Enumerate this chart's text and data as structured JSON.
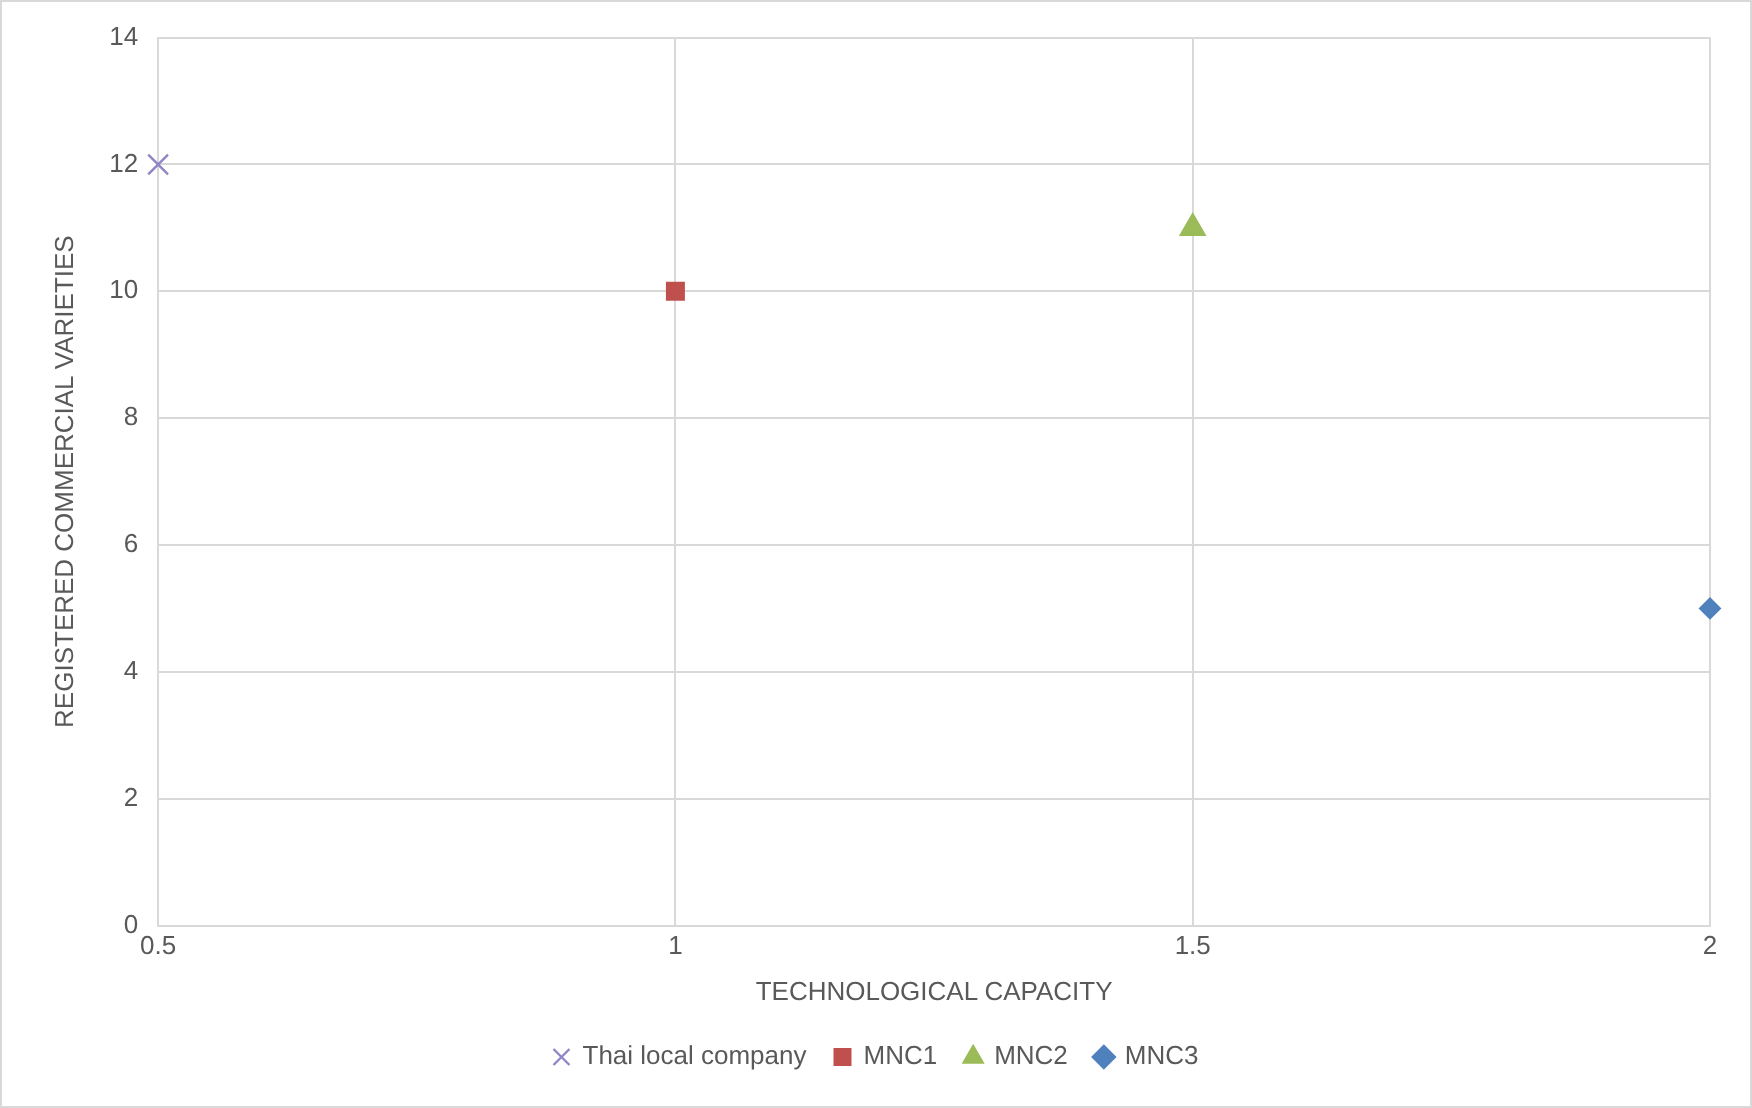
{
  "chart_data": {
    "type": "scatter",
    "xlabel": "TECHNOLOGICAL CAPACITY",
    "ylabel": "REGISTERED COMMERCIAL VARIETIES",
    "xlim": [
      0.5,
      2
    ],
    "xticks": [
      {
        "value": 0.5,
        "label": "0.5"
      },
      1,
      1.5,
      2
    ],
    "ylim": [
      0,
      14
    ],
    "yticks": [
      0,
      2,
      4,
      6,
      8,
      10,
      12,
      14
    ],
    "grid": true,
    "legend": "bottom",
    "series": [
      {
        "name": "Thai local company",
        "color": "#8e86c9",
        "marker": "cross",
        "x": [
          0.5
        ],
        "values": [
          12
        ]
      },
      {
        "name": "MNC1",
        "color": "#c0504d",
        "marker": "square",
        "x": [
          1
        ],
        "values": [
          10
        ]
      },
      {
        "name": "MNC2",
        "color": "#9bbb59",
        "marker": "triangle",
        "x": [
          1.5
        ],
        "values": [
          11
        ]
      },
      {
        "name": "MNC3",
        "color": "#4f81bd",
        "marker": "diamond",
        "x": [
          2
        ],
        "values": [
          5
        ]
      }
    ]
  }
}
